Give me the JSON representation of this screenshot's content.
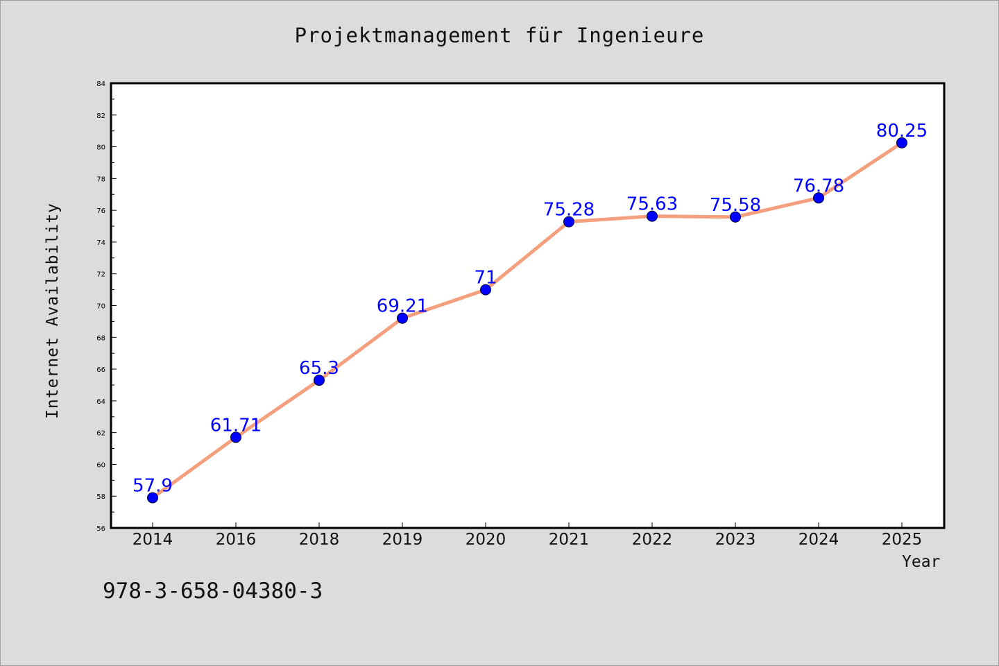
{
  "chart_data": {
    "type": "line",
    "title": "Projektmanagement für Ingenieure",
    "xlabel": "Year",
    "ylabel": "Internet Availability",
    "categories": [
      "2014",
      "2016",
      "2018",
      "2019",
      "2020",
      "2021",
      "2022",
      "2023",
      "2024",
      "2025"
    ],
    "values": [
      57.9,
      61.71,
      65.3,
      69.21,
      71,
      75.28,
      75.63,
      75.58,
      76.78,
      80.25
    ],
    "data_labels": [
      "57.9",
      "61.71",
      "65.3",
      "69.21",
      "71",
      "75.28",
      "75.63",
      "75.58",
      "76.78",
      "80.25"
    ],
    "ylim": [
      56,
      84
    ],
    "yticks": [
      "56",
      "58",
      "60",
      "62",
      "64",
      "66",
      "68",
      "70",
      "72",
      "74",
      "76",
      "78",
      "80",
      "82",
      "84"
    ],
    "grid": false,
    "line_color": "#f4a07e",
    "marker_color": "#0000ff",
    "label_color": "#0000ff"
  },
  "footer": {
    "isbn": "978-3-658-04380-3"
  }
}
